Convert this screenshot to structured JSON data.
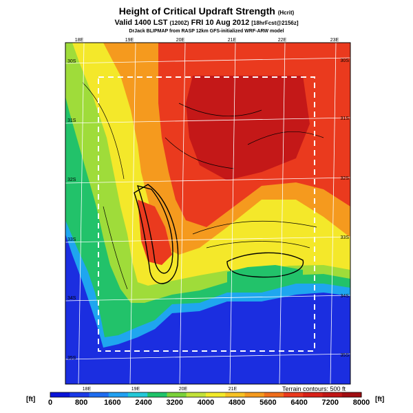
{
  "header": {
    "title": "Height of Critical Updraft Strength",
    "title_note": "(Hcrit)",
    "valid": "Valid 1400 LST",
    "valid_note": "(1200Z)",
    "valid_date": "FRI 10 Aug 2012",
    "forecast_note": "[18hrFcst@2156z]",
    "credit": "DrJack BLIPMAP from RASP 12km GFS-initialized WRF-ARW model"
  },
  "map": {
    "top_lon_labels": [
      "18E",
      "19E",
      "20E",
      "21E",
      "22E",
      "23E"
    ],
    "bottom_lon_labels": [
      "18E",
      "19E",
      "20E",
      "21E"
    ],
    "left_lat_labels": [
      "30S",
      "31S",
      "32S",
      "33S",
      "34S",
      "35S"
    ],
    "right_lat_labels": [
      "30S",
      "31S",
      "32S",
      "33S",
      "34S",
      "35S"
    ],
    "terrain_note": "Terrain contours: 500 ft",
    "colors": {
      "ocean": "#1b2ee0",
      "shelf": "#1fa6ef",
      "low": "#22c26a",
      "mid": "#9fdc3a",
      "yellow": "#f4e82a",
      "orange": "#f59a1e",
      "red": "#ea3a1e",
      "dark_red": "#c41818"
    }
  },
  "colorbar": {
    "unit_left": "[ft]",
    "unit_right": "[ft]",
    "labels": [
      "0",
      "800",
      "1600",
      "2400",
      "3200",
      "4000",
      "4800",
      "5600",
      "6400",
      "7200",
      "8000"
    ],
    "colors": [
      "#0a14d8",
      "#1a3ae8",
      "#1f6df0",
      "#21a0f2",
      "#22c8d8",
      "#1fc46a",
      "#7ad23a",
      "#c2e23a",
      "#f2ea2a",
      "#f7c224",
      "#f59a1e",
      "#f06e1c",
      "#ea3a1e",
      "#d82018",
      "#c01616",
      "#a00e12"
    ]
  }
}
